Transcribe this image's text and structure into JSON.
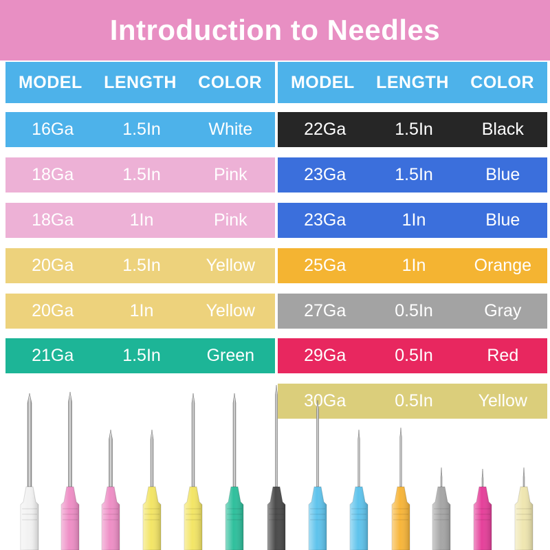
{
  "title": "Introduction to Needles",
  "headers": [
    "MODEL",
    "LENGTH",
    "COLOR"
  ],
  "left_table": [
    {
      "model": "16Ga",
      "length": "1.5In",
      "color": "White",
      "bg": "#4db2ea"
    },
    {
      "model": "18Ga",
      "length": "1.5In",
      "color": "Pink",
      "bg": "#edb1d6"
    },
    {
      "model": "18Ga",
      "length": "1In",
      "color": "Pink",
      "bg": "#edb1d6"
    },
    {
      "model": "20Ga",
      "length": "1.5In",
      "color": "Yellow",
      "bg": "#edd27c"
    },
    {
      "model": "20Ga",
      "length": "1In",
      "color": "Yellow",
      "bg": "#edd27c"
    },
    {
      "model": "21Ga",
      "length": "1.5In",
      "color": "Green",
      "bg": "#1db597"
    }
  ],
  "right_table": [
    {
      "model": "22Ga",
      "length": "1.5In",
      "color": "Black",
      "bg": "#262626"
    },
    {
      "model": "23Ga",
      "length": "1.5In",
      "color": "Blue",
      "bg": "#3b6fdc"
    },
    {
      "model": "23Ga",
      "length": "1In",
      "color": "Blue",
      "bg": "#3b6fdc"
    },
    {
      "model": "25Ga",
      "length": "1In",
      "color": "Orange",
      "bg": "#f4b432"
    },
    {
      "model": "27Ga",
      "length": "0.5In",
      "color": "Gray",
      "bg": "#a3a3a3"
    },
    {
      "model": "29Ga",
      "length": "0.5In",
      "color": "Red",
      "bg": "#e8275f"
    },
    {
      "model": "30Ga",
      "length": "0.5In",
      "color": "Yellow",
      "bg": "#dbce7b"
    }
  ],
  "needle_colors": [
    "#f2f2f2",
    "#ee8fc6",
    "#ee8fc6",
    "#f3e566",
    "#f3e566",
    "#2fbf9c",
    "#4a4a4a",
    "#5fc3ec",
    "#5fc3ec",
    "#f7b53a",
    "#a6a6a6",
    "#e5409a",
    "#efe6b0"
  ]
}
